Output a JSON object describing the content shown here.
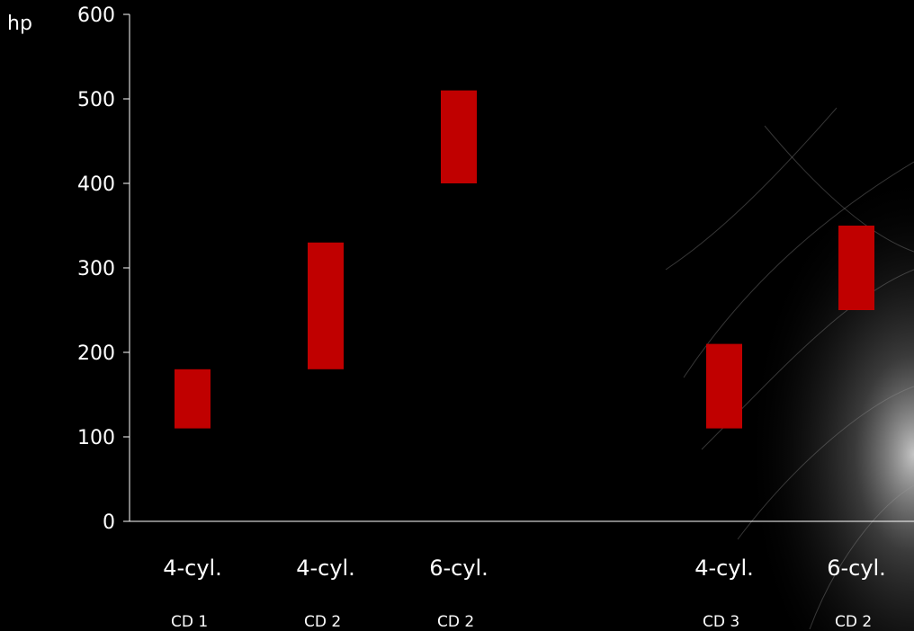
{
  "chart_data": {
    "type": "bar",
    "ylabel": "hp",
    "ylim": [
      0,
      600
    ],
    "yticks": [
      0,
      100,
      200,
      300,
      400,
      500,
      600
    ],
    "categories": [
      {
        "label": "4-cyl.",
        "sublabel": "CD 1",
        "low": 110,
        "high": 180
      },
      {
        "label": "4-cyl.",
        "sublabel": "CD 2",
        "low": 180,
        "high": 330
      },
      {
        "label": "6-cyl.",
        "sublabel": "CD 2",
        "low": 400,
        "high": 510
      },
      {
        "label": "4-cyl.",
        "sublabel": "CD 3",
        "low": 110,
        "high": 210
      },
      {
        "label": "6-cyl.",
        "sublabel": "CD 2",
        "low": 250,
        "high": 350
      }
    ],
    "colors": {
      "bar": "#c00000",
      "axis": "#ffffff",
      "background": "#000000"
    }
  }
}
